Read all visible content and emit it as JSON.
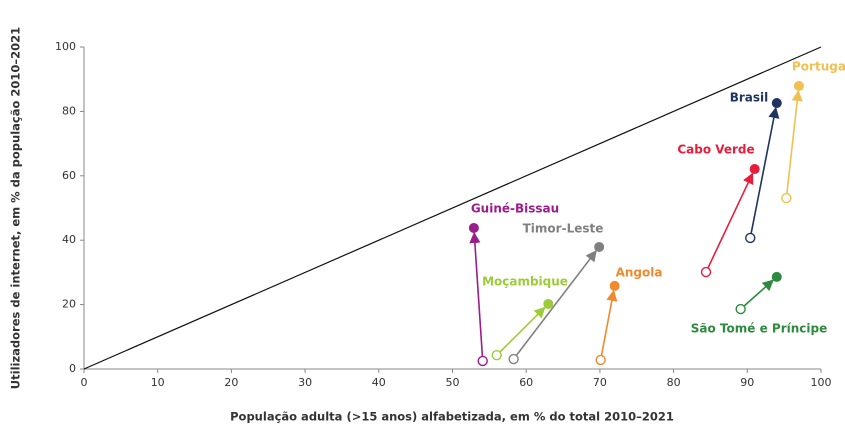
{
  "chart_data": {
    "type": "scatter",
    "x_label": "População adulta (>15 anos) alfabetizada, em % do total 2010–2021",
    "y_label": "Utilizadores de internet, em % da população 2010–2021",
    "xlim": [
      0,
      100
    ],
    "xticks": [
      0,
      10,
      20,
      30,
      40,
      50,
      60,
      70,
      80,
      90,
      100
    ],
    "ylim": [
      0,
      100
    ],
    "yticks": [
      0,
      20,
      40,
      60,
      80,
      100
    ],
    "series": [
      {
        "name": "Guiné-Bissau",
        "color": "#9b1d8c",
        "x": [
          54.1,
          52.9
        ],
        "values": [
          2.5,
          43.8
        ]
      },
      {
        "name": "Moçambique",
        "color": "#9dcb3a",
        "x": [
          56.0,
          63.0
        ],
        "values": [
          4.3,
          20.2
        ]
      },
      {
        "name": "Timor-Leste",
        "color": "#808080",
        "x": [
          58.3,
          69.9
        ],
        "values": [
          3.1,
          37.9
        ]
      },
      {
        "name": "Angola",
        "color": "#f08a2e",
        "x": [
          70.1,
          72.0
        ],
        "values": [
          2.8,
          25.8
        ]
      },
      {
        "name": "Cabo Verde",
        "color": "#e61e3c",
        "x": [
          84.4,
          91.0
        ],
        "values": [
          30.1,
          62.1
        ]
      },
      {
        "name": "Brasil",
        "color": "#1f3560",
        "x": [
          90.4,
          94.0
        ],
        "values": [
          40.7,
          82.6
        ]
      },
      {
        "name": "Portuga",
        "color": "#f0c050",
        "x": [
          95.3,
          97.0
        ],
        "values": [
          53.1,
          87.9
        ]
      },
      {
        "name": "São Tomé e Príncipe",
        "color": "#2e8a3e",
        "x": [
          89.1,
          94.0
        ],
        "values": [
          18.6,
          28.6
        ]
      }
    ]
  }
}
